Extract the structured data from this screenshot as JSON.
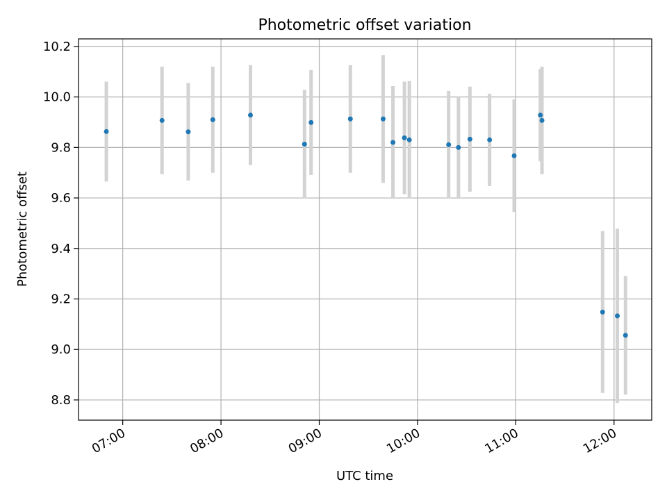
{
  "chart_data": {
    "type": "scatter",
    "title": "Photometric offset variation",
    "xlabel": "UTC time",
    "ylabel": "Photometric offset",
    "grid": true,
    "x_axis_type": "time",
    "xlim": [
      "06:33",
      "12:23"
    ],
    "ylim": [
      8.72,
      10.23
    ],
    "x_ticks": [
      "07:00",
      "08:00",
      "09:00",
      "10:00",
      "11:00",
      "12:00"
    ],
    "y_ticks": [
      "8.8",
      "9.0",
      "9.2",
      "9.4",
      "9.6",
      "9.8",
      "10.0",
      "10.2"
    ],
    "colors": {
      "point": "#1f77b4",
      "error_bar": "#d3d3d3",
      "grid": "#b0b0b0"
    },
    "points": [
      {
        "x": "06:50",
        "y": 9.863,
        "yerr": 0.198
      },
      {
        "x": "07:24",
        "y": 9.907,
        "yerr": 0.213
      },
      {
        "x": "07:40",
        "y": 9.862,
        "yerr": 0.193
      },
      {
        "x": "07:55",
        "y": 9.91,
        "yerr": 0.21
      },
      {
        "x": "08:18",
        "y": 9.928,
        "yerr": 0.198
      },
      {
        "x": "08:51",
        "y": 9.813,
        "yerr": 0.215
      },
      {
        "x": "08:55",
        "y": 9.899,
        "yerr": 0.208
      },
      {
        "x": "09:19",
        "y": 9.913,
        "yerr": 0.213
      },
      {
        "x": "09:39",
        "y": 9.913,
        "yerr": 0.253
      },
      {
        "x": "09:45",
        "y": 9.82,
        "yerr": 0.223
      },
      {
        "x": "09:52",
        "y": 9.838,
        "yerr": 0.223
      },
      {
        "x": "09:55",
        "y": 9.83,
        "yerr": 0.233
      },
      {
        "x": "10:19",
        "y": 9.811,
        "yerr": 0.213
      },
      {
        "x": "10:25",
        "y": 9.8,
        "yerr": 0.2
      },
      {
        "x": "10:32",
        "y": 9.833,
        "yerr": 0.208
      },
      {
        "x": "10:44",
        "y": 9.83,
        "yerr": 0.183
      },
      {
        "x": "10:59",
        "y": 9.767,
        "yerr": 0.223
      },
      {
        "x": "11:15",
        "y": 9.928,
        "yerr": 0.183
      },
      {
        "x": "11:16",
        "y": 9.907,
        "yerr": 0.213
      },
      {
        "x": "11:53",
        "y": 9.148,
        "yerr": 0.32
      },
      {
        "x": "12:02",
        "y": 9.133,
        "yerr": 0.345
      },
      {
        "x": "12:07",
        "y": 9.056,
        "yerr": 0.235
      }
    ]
  }
}
